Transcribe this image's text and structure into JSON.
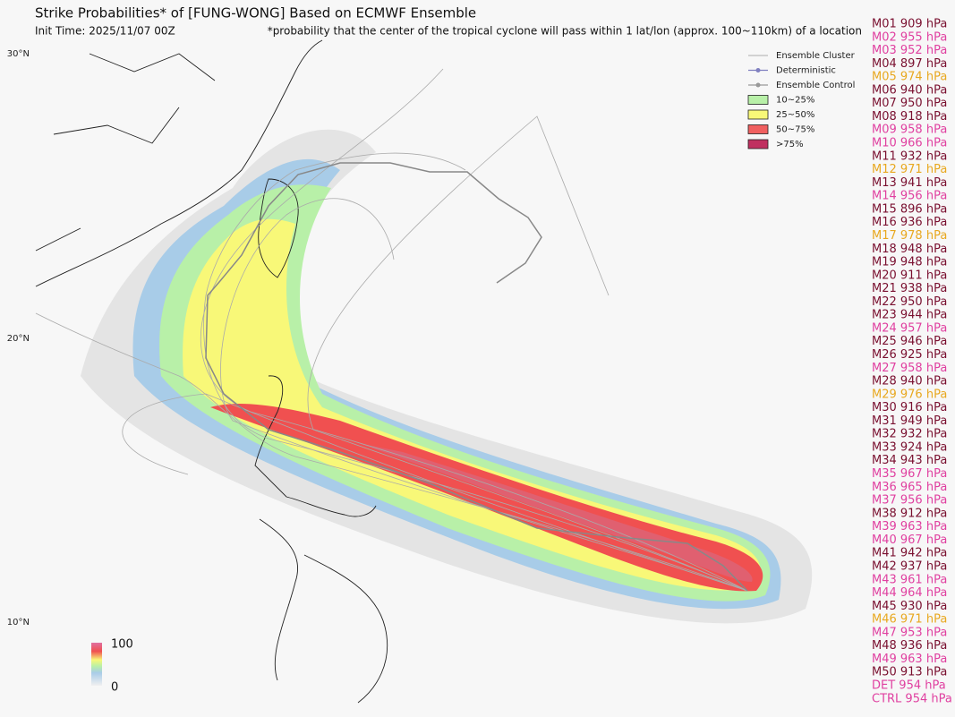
{
  "header": {
    "title": "Strike Probabilities* of [FUNG-WONG] Based on ECMWF Ensemble",
    "init_time": "Init Time: 2025/11/07 00Z",
    "footnote": "*probability that the center of the tropical cyclone will pass within 1 lat/lon (approx. 100~110km) of a location"
  },
  "latitude_labels": [
    "30°N",
    "20°N",
    "10°N"
  ],
  "legend": [
    {
      "label": "Ensemble Cluster",
      "kind": "line",
      "color": "#bbbbbb"
    },
    {
      "label": "Deterministic",
      "kind": "dot-line",
      "color": "#8080c0"
    },
    {
      "label": "Ensemble Control",
      "kind": "dot-line",
      "color": "#999999"
    },
    {
      "label": "10~25%",
      "kind": "box",
      "color": "#b8f0a8"
    },
    {
      "label": "25~50%",
      "kind": "box",
      "color": "#f8f878"
    },
    {
      "label": "50~75%",
      "kind": "box",
      "color": "#f06060"
    },
    {
      "label": ">75%",
      "kind": "box",
      "color": "#c03060"
    }
  ],
  "colorbar": {
    "max_label": "100",
    "min_label": "0"
  },
  "members": [
    {
      "text": "M01 909 hPa",
      "color": "#7a1030"
    },
    {
      "text": "M02 955 hPa",
      "color": "#e040a0"
    },
    {
      "text": "M03 952 hPa",
      "color": "#e040a0"
    },
    {
      "text": "M04 897 hPa",
      "color": "#7a1030"
    },
    {
      "text": "M05 974 hPa",
      "color": "#e8a820"
    },
    {
      "text": "M06 940 hPa",
      "color": "#7a1030"
    },
    {
      "text": "M07 950 hPa",
      "color": "#7a1030"
    },
    {
      "text": "M08 918 hPa",
      "color": "#7a1030"
    },
    {
      "text": "M09 958 hPa",
      "color": "#e040a0"
    },
    {
      "text": "M10 966 hPa",
      "color": "#e040a0"
    },
    {
      "text": "M11 932 hPa",
      "color": "#7a1030"
    },
    {
      "text": "M12 971 hPa",
      "color": "#e8a820"
    },
    {
      "text": "M13 941 hPa",
      "color": "#7a1030"
    },
    {
      "text": "M14 956 hPa",
      "color": "#e040a0"
    },
    {
      "text": "M15 896 hPa",
      "color": "#7a1030"
    },
    {
      "text": "M16 936 hPa",
      "color": "#7a1030"
    },
    {
      "text": "M17 978 hPa",
      "color": "#e8a820"
    },
    {
      "text": "M18 948 hPa",
      "color": "#7a1030"
    },
    {
      "text": "M19 948 hPa",
      "color": "#7a1030"
    },
    {
      "text": "M20 911 hPa",
      "color": "#7a1030"
    },
    {
      "text": "M21 938 hPa",
      "color": "#7a1030"
    },
    {
      "text": "M22 950 hPa",
      "color": "#7a1030"
    },
    {
      "text": "M23 944 hPa",
      "color": "#7a1030"
    },
    {
      "text": "M24 957 hPa",
      "color": "#e040a0"
    },
    {
      "text": "M25 946 hPa",
      "color": "#7a1030"
    },
    {
      "text": "M26 925 hPa",
      "color": "#7a1030"
    },
    {
      "text": "M27 958 hPa",
      "color": "#e040a0"
    },
    {
      "text": "M28 940 hPa",
      "color": "#7a1030"
    },
    {
      "text": "M29 976 hPa",
      "color": "#e8a820"
    },
    {
      "text": "M30 916 hPa",
      "color": "#7a1030"
    },
    {
      "text": "M31 949 hPa",
      "color": "#7a1030"
    },
    {
      "text": "M32 932 hPa",
      "color": "#7a1030"
    },
    {
      "text": "M33 924 hPa",
      "color": "#7a1030"
    },
    {
      "text": "M34 943 hPa",
      "color": "#7a1030"
    },
    {
      "text": "M35 967 hPa",
      "color": "#e040a0"
    },
    {
      "text": "M36 965 hPa",
      "color": "#e040a0"
    },
    {
      "text": "M37 956 hPa",
      "color": "#e040a0"
    },
    {
      "text": "M38 912 hPa",
      "color": "#7a1030"
    },
    {
      "text": "M39 963 hPa",
      "color": "#e040a0"
    },
    {
      "text": "M40 967 hPa",
      "color": "#e040a0"
    },
    {
      "text": "M41 942 hPa",
      "color": "#7a1030"
    },
    {
      "text": "M42 937 hPa",
      "color": "#7a1030"
    },
    {
      "text": "M43 961 hPa",
      "color": "#e040a0"
    },
    {
      "text": "M44 964 hPa",
      "color": "#e040a0"
    },
    {
      "text": "M45 930 hPa",
      "color": "#7a1030"
    },
    {
      "text": "M46 971 hPa",
      "color": "#e8a820"
    },
    {
      "text": "M47 953 hPa",
      "color": "#e040a0"
    },
    {
      "text": "M48 936 hPa",
      "color": "#7a1030"
    },
    {
      "text": "M49 963 hPa",
      "color": "#e040a0"
    },
    {
      "text": "M50 913 hPa",
      "color": "#7a1030"
    },
    {
      "text": "DET 954 hPa",
      "color": "#e040a0"
    },
    {
      "text": "CTRL 954 hPa",
      "color": "#e040a0"
    }
  ]
}
